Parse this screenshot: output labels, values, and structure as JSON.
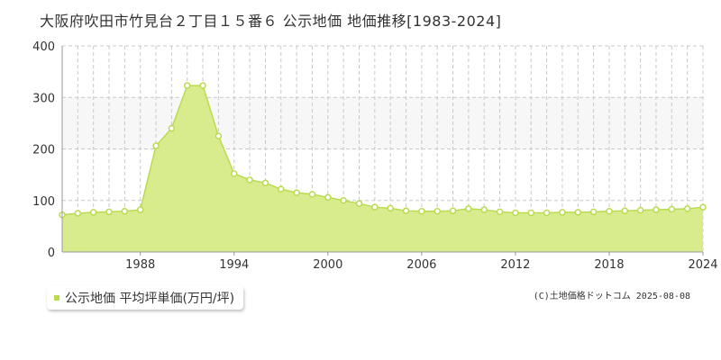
{
  "title": "大阪府吹田市竹見台２丁目１５番６ 公示地価 地価推移[1983-2024]",
  "legend_label": "公示地価 平均坪単価(万円/坪)",
  "credit": "(C)土地価格ドットコム 2025-08-08",
  "colors": {
    "fill": "#d8ec8e",
    "line": "#b9dc4f",
    "marker_fill": "#ffffff",
    "marker_stroke": "#b9dc4f",
    "grid": "#c8c8c8",
    "band": "#f7f7f7",
    "axis_text": "#333333",
    "legend_swatch": "#b9dc4f"
  },
  "chart_data": {
    "type": "area",
    "x": [
      1983,
      1984,
      1985,
      1986,
      1987,
      1988,
      1989,
      1990,
      1991,
      1992,
      1993,
      1994,
      1995,
      1996,
      1997,
      1998,
      1999,
      2000,
      2001,
      2002,
      2003,
      2004,
      2005,
      2006,
      2007,
      2008,
      2009,
      2010,
      2011,
      2012,
      2013,
      2014,
      2015,
      2016,
      2017,
      2018,
      2019,
      2020,
      2021,
      2022,
      2023,
      2024
    ],
    "series": [
      {
        "name": "公示地価 平均坪単価(万円/坪)",
        "values": [
          72,
          75,
          77,
          78,
          79,
          82,
          206,
          240,
          323,
          323,
          225,
          152,
          140,
          134,
          122,
          115,
          112,
          106,
          100,
          94,
          87,
          85,
          80,
          79,
          79,
          80,
          84,
          82,
          78,
          76,
          76,
          76,
          77,
          77,
          78,
          79,
          80,
          81,
          82,
          83,
          84,
          87
        ]
      }
    ],
    "xlim": [
      1983,
      2024
    ],
    "ylim": [
      0,
      400
    ],
    "y_ticks": [
      0,
      100,
      200,
      300,
      400
    ],
    "x_tick_labels": [
      "1988",
      "1994",
      "2000",
      "2006",
      "2012",
      "2018",
      "2024"
    ],
    "x_tick_values": [
      1988,
      1994,
      2000,
      2006,
      2012,
      2018,
      2024
    ],
    "grid": true,
    "legend": "bottom-left"
  }
}
